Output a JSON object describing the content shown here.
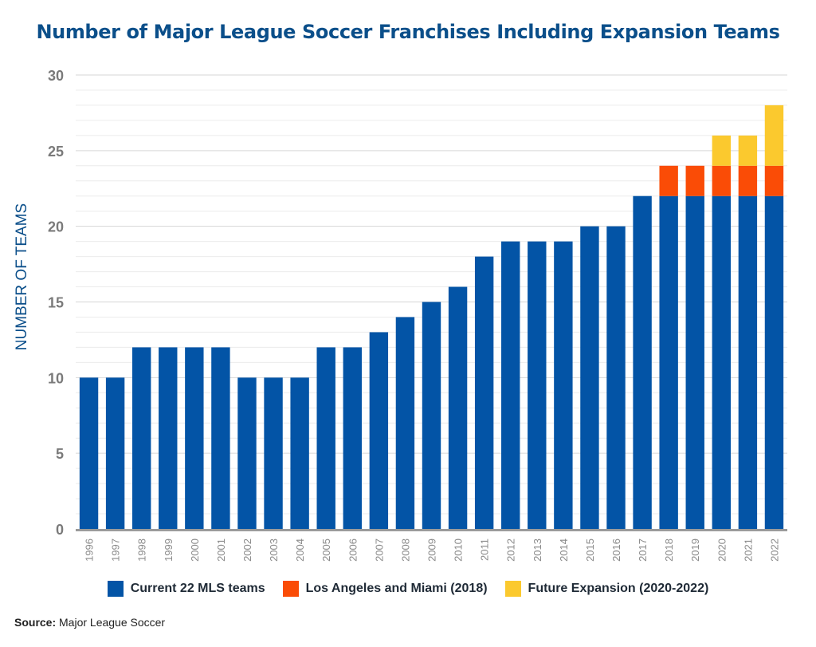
{
  "chart_data": {
    "type": "bar",
    "stacked": true,
    "title": "Number of Major League Soccer Franchises Including Expansion Teams",
    "ylabel": "NUMBER OF TEAMS",
    "xlabel": "",
    "ylim": [
      0,
      30
    ],
    "yticks": [
      0,
      5,
      10,
      15,
      20,
      25,
      30
    ],
    "grid": true,
    "legend_position": "bottom",
    "categories": [
      "1996",
      "1997",
      "1998",
      "1999",
      "2000",
      "2001",
      "2002",
      "2003",
      "2004",
      "2005",
      "2006",
      "2007",
      "2008",
      "2009",
      "2010",
      "2011",
      "2012",
      "2013",
      "2014",
      "2015",
      "2016",
      "2017",
      "2018",
      "2019",
      "2020",
      "2021",
      "2022"
    ],
    "series": [
      {
        "name": "Current 22 MLS teams",
        "color": "#0354a6",
        "values": [
          10,
          10,
          12,
          12,
          12,
          12,
          10,
          10,
          10,
          12,
          12,
          13,
          14,
          15,
          16,
          18,
          19,
          19,
          19,
          20,
          20,
          22,
          22,
          22,
          22,
          22,
          22
        ]
      },
      {
        "name": "Los Angeles and Miami (2018)",
        "color": "#fa4c06",
        "values": [
          0,
          0,
          0,
          0,
          0,
          0,
          0,
          0,
          0,
          0,
          0,
          0,
          0,
          0,
          0,
          0,
          0,
          0,
          0,
          0,
          0,
          0,
          2,
          2,
          2,
          2,
          2
        ]
      },
      {
        "name": "Future Expansion (2020-2022)",
        "color": "#fbc92e",
        "values": [
          0,
          0,
          0,
          0,
          0,
          0,
          0,
          0,
          0,
          0,
          0,
          0,
          0,
          0,
          0,
          0,
          0,
          0,
          0,
          0,
          0,
          0,
          0,
          0,
          2,
          2,
          4
        ]
      }
    ]
  },
  "source": {
    "label": "Source:",
    "text": "Major League Soccer"
  }
}
